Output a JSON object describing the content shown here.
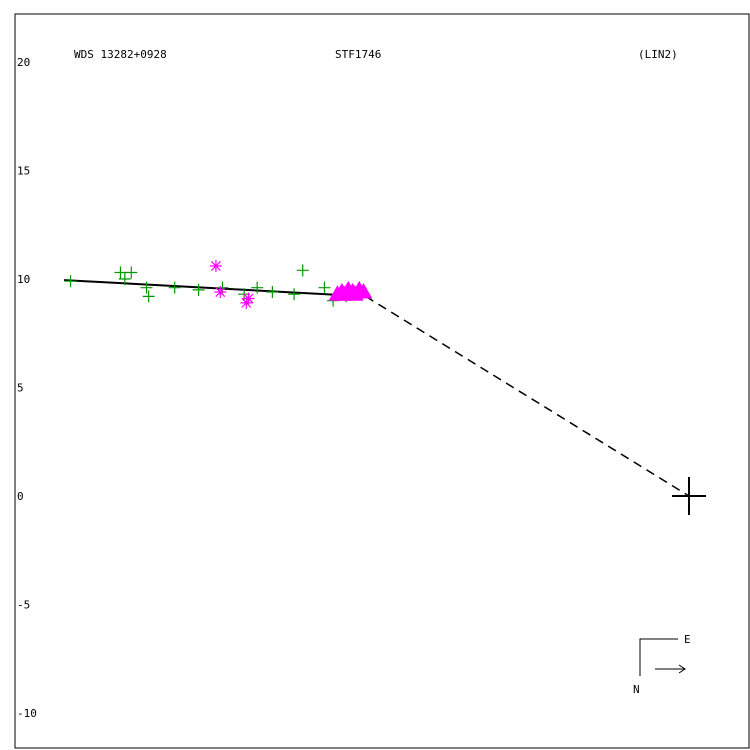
{
  "header": {
    "wds_id": "WDS 13282+0928",
    "discoverer": "STF1746",
    "method": "(LIN2)"
  },
  "orientation": {
    "east_label": "E",
    "north_label": "N"
  },
  "colors": {
    "frame": "#000000",
    "observation_plus": "#009900",
    "observation_special": "#ff00ff",
    "fit_line": "#000000",
    "residual": "#ff0000",
    "primary": "#000000"
  },
  "chart_data": {
    "type": "scatter",
    "title": "",
    "xlabel": "",
    "ylabel": "",
    "ylim": [
      -10,
      20
    ],
    "ytick_labels": [
      "20",
      "15",
      "10",
      "5",
      "0",
      "-5",
      "-10"
    ],
    "yticks": [
      20,
      15,
      10,
      5,
      0,
      -5,
      -10
    ],
    "primary_star": [
      0,
      0
    ],
    "series": [
      {
        "marker": "plus",
        "color": "#009900",
        "points": [
          [
            -28.5,
            9.9
          ],
          [
            -26.2,
            10.3
          ],
          [
            -26.0,
            10.0
          ],
          [
            -25.7,
            10.3
          ],
          [
            -25.0,
            9.6
          ],
          [
            -24.9,
            9.2
          ],
          [
            -23.7,
            9.6
          ],
          [
            -22.6,
            9.5
          ],
          [
            -21.5,
            9.6
          ],
          [
            -20.5,
            9.3
          ],
          [
            -19.9,
            9.6
          ],
          [
            -19.2,
            9.4
          ],
          [
            -17.8,
            10.4
          ],
          [
            -18.2,
            9.3
          ],
          [
            -16.8,
            9.6
          ],
          [
            -16.4,
            9.0
          ],
          [
            -15.8,
            9.2
          ]
        ]
      },
      {
        "marker": "asterisk",
        "color": "#ff00ff",
        "points": [
          [
            -21.8,
            10.6
          ],
          [
            -21.6,
            9.4
          ],
          [
            -20.4,
            8.9
          ],
          [
            -20.3,
            9.1
          ]
        ]
      },
      {
        "marker": "triangle",
        "color": "#ff00ff",
        "points": [
          [
            -16.2,
            9.3
          ],
          [
            -16.0,
            9.4
          ],
          [
            -15.9,
            9.3
          ],
          [
            -15.7,
            9.5
          ],
          [
            -15.5,
            9.4
          ],
          [
            -15.4,
            9.3
          ],
          [
            -15.2,
            9.5
          ],
          [
            -15.0,
            9.4
          ]
        ]
      }
    ],
    "fit_line": [
      [
        -28.8,
        9.95
      ],
      [
        -14.9,
        9.2
      ]
    ],
    "projection_line": [
      [
        -14.9,
        9.2
      ],
      [
        0,
        0
      ]
    ]
  }
}
